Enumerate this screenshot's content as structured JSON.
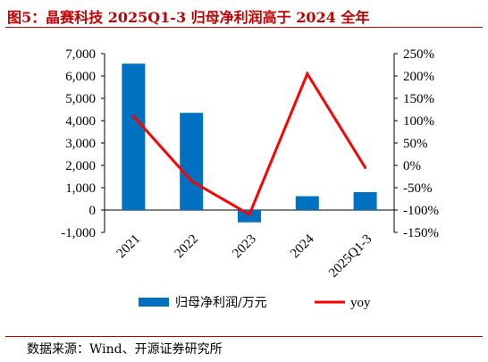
{
  "title": "图5：晶赛科技 2025Q1-3 归母净利润高于 2024 全年",
  "source": "数据来源：Wind、开源证券研究所",
  "colors": {
    "bar": "#0070c0",
    "line": "#ff0000",
    "title": "#c00000"
  },
  "chart_data": {
    "type": "bar+line",
    "categories": [
      "2021",
      "2022",
      "2023",
      "2024",
      "2025Q1-3"
    ],
    "series": [
      {
        "name": "归母净利润/万元",
        "type": "bar",
        "axis": "left",
        "values": [
          6550,
          4350,
          -550,
          620,
          800
        ]
      },
      {
        "name": "yoy",
        "type": "line",
        "axis": "right",
        "values": [
          1.1,
          -0.35,
          -1.1,
          2.05,
          -0.05
        ]
      }
    ],
    "y_left": {
      "min": -1000,
      "max": 7000,
      "ticks": [
        7000,
        6000,
        5000,
        4000,
        3000,
        2000,
        1000,
        0,
        -1000
      ],
      "tick_labels": [
        "7,000",
        "6,000",
        "5,000",
        "4,000",
        "3,000",
        "2,000",
        "1,000",
        "0",
        "-1,000"
      ]
    },
    "y_right": {
      "min": -1.5,
      "max": 2.5,
      "ticks": [
        2.5,
        2.0,
        1.5,
        1.0,
        0.5,
        0,
        -0.5,
        -1.0,
        -1.5
      ],
      "tick_labels": [
        "250%",
        "200%",
        "150%",
        "100%",
        "50%",
        "0%",
        "-50%",
        "-100%",
        "-150%"
      ]
    },
    "legend": {
      "position": "bottom",
      "items": [
        "归母净利润/万元",
        "yoy"
      ]
    },
    "grid": false
  }
}
